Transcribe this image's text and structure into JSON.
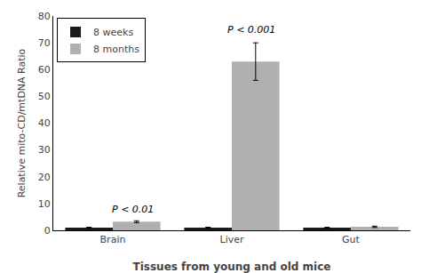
{
  "chart_data": {
    "type": "bar",
    "xlabel": "Tissues from young and old mice",
    "ylabel": "Relative mito-CD/mtDNA Ratio",
    "categories": [
      "Brain",
      "Liver",
      "Gut"
    ],
    "series": [
      {
        "name": "8 weeks",
        "color": "#1a1a1a",
        "values": [
          1.0,
          1.0,
          1.0
        ],
        "errors": [
          0.15,
          0.15,
          0.12
        ]
      },
      {
        "name": "8 months",
        "color": "#b0b0b0",
        "values": [
          3.2,
          63.0,
          1.3
        ],
        "errors": [
          0.35,
          7.0,
          0.25
        ]
      }
    ],
    "ylim": [
      0,
      80
    ],
    "yticks": [
      0,
      10,
      20,
      30,
      40,
      50,
      60,
      70,
      80
    ],
    "legend": "upper left",
    "grid": false,
    "annotations": [
      {
        "text": "P < 0.01",
        "x": "Brain",
        "y": 5.0
      },
      {
        "text": "P < 0.001",
        "x": "Liver",
        "y": 72.0
      }
    ]
  }
}
